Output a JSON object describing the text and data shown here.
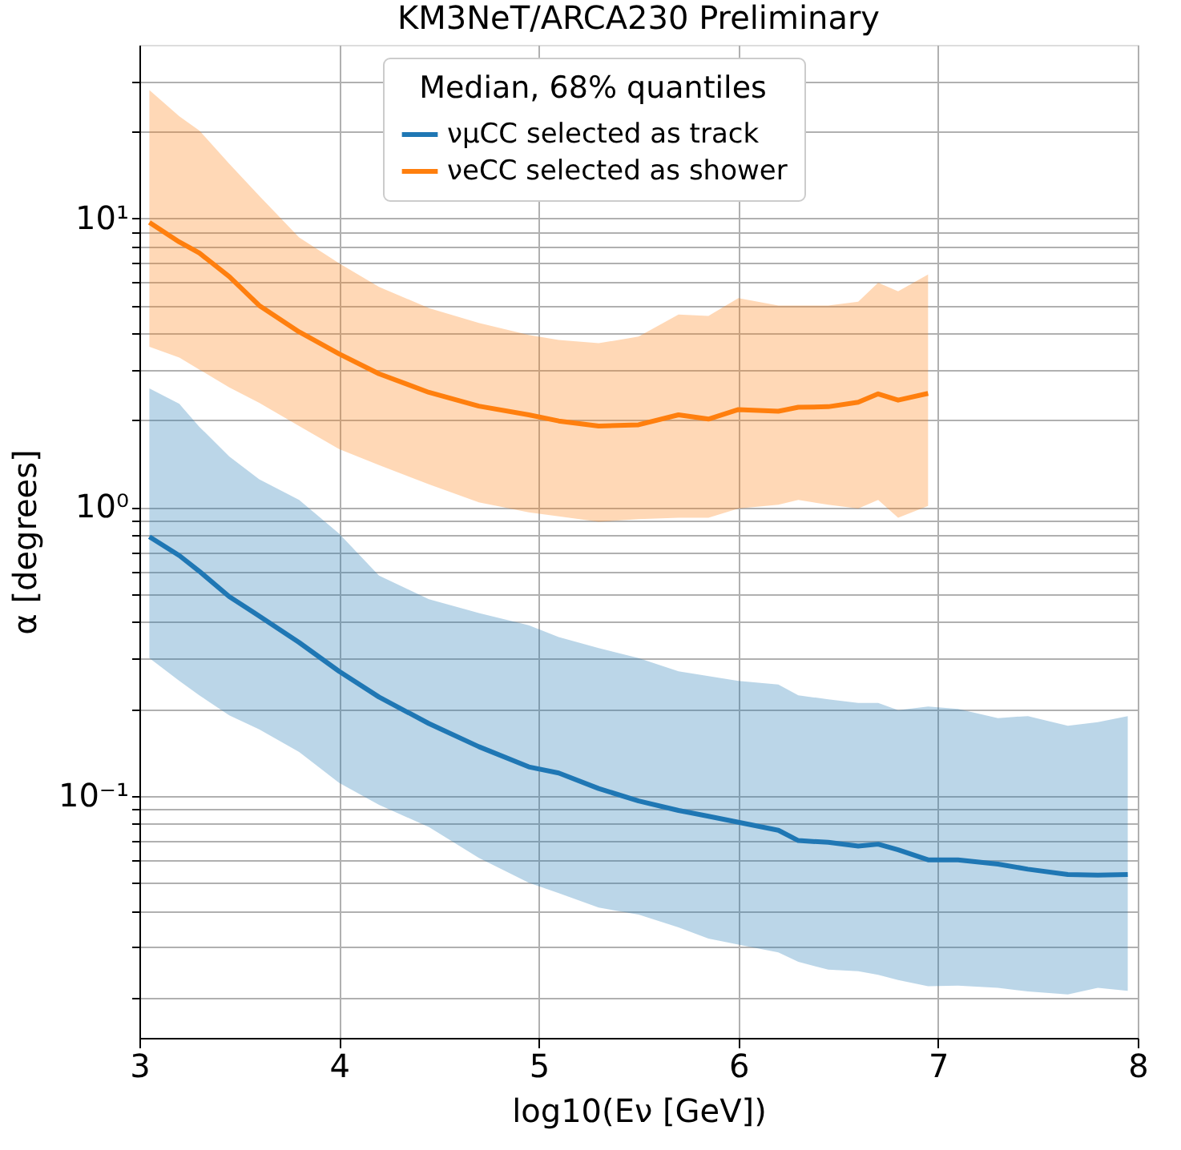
{
  "chart_data": {
    "type": "line",
    "title": "KM3NeT/ARCA230 Preliminary",
    "xlabel": "log10(Eν [GeV])",
    "ylabel": "α [degrees]",
    "legend_title": "Median, 68% quantiles",
    "series": [
      {
        "name": "νμCC selected as track",
        "color": "#1f77b4",
        "x": [
          3.05,
          3.2,
          3.3,
          3.45,
          3.6,
          3.8,
          4.0,
          4.2,
          4.45,
          4.7,
          4.95,
          5.1,
          5.3,
          5.5,
          5.7,
          5.85,
          6.0,
          6.2,
          6.3,
          6.45,
          6.6,
          6.7,
          6.8,
          6.95,
          7.1,
          7.3,
          7.45,
          7.65,
          7.8,
          7.95
        ],
        "values": [
          0.79,
          0.68,
          0.6,
          0.49,
          0.42,
          0.34,
          0.27,
          0.22,
          0.178,
          0.148,
          0.126,
          0.12,
          0.106,
          0.096,
          0.089,
          0.085,
          0.081,
          0.076,
          0.07,
          0.069,
          0.067,
          0.068,
          0.065,
          0.06,
          0.06,
          0.058,
          0.0557,
          0.0534,
          0.0531,
          0.0534
        ],
        "upper": [
          2.58,
          2.28,
          1.9,
          1.5,
          1.25,
          1.06,
          0.81,
          0.58,
          0.48,
          0.43,
          0.39,
          0.355,
          0.325,
          0.3,
          0.27,
          0.26,
          0.25,
          0.243,
          0.223,
          0.216,
          0.21,
          0.21,
          0.198,
          0.204,
          0.2,
          0.186,
          0.189,
          0.175,
          0.18,
          0.189
        ],
        "lower": [
          0.3,
          0.25,
          0.223,
          0.19,
          0.17,
          0.142,
          0.111,
          0.093,
          0.078,
          0.061,
          0.05,
          0.046,
          0.041,
          0.0388,
          0.035,
          0.032,
          0.0305,
          0.0287,
          0.0266,
          0.025,
          0.0247,
          0.024,
          0.023,
          0.0219,
          0.022,
          0.0216,
          0.021,
          0.0205,
          0.0216,
          0.0211
        ]
      },
      {
        "name": "νeCC selected as shower",
        "color": "#ff7f0e",
        "x": [
          3.05,
          3.2,
          3.3,
          3.45,
          3.6,
          3.8,
          4.0,
          4.2,
          4.45,
          4.7,
          4.95,
          5.1,
          5.3,
          5.5,
          5.7,
          5.85,
          6.0,
          6.2,
          6.3,
          6.45,
          6.6,
          6.7,
          6.8,
          6.95
        ],
        "values": [
          9.7,
          8.3,
          7.6,
          6.3,
          5.0,
          4.05,
          3.4,
          2.9,
          2.5,
          2.24,
          2.09,
          1.99,
          1.91,
          1.93,
          2.09,
          2.02,
          2.18,
          2.15,
          2.22,
          2.23,
          2.31,
          2.47,
          2.35,
          2.48
        ],
        "upper": [
          27.9,
          22.6,
          20.2,
          15.5,
          12,
          8.6,
          7.0,
          5.8,
          4.9,
          4.35,
          3.95,
          3.8,
          3.7,
          3.9,
          4.65,
          4.6,
          5.3,
          5.0,
          5.0,
          5.0,
          5.15,
          6.0,
          5.6,
          6.4
        ],
        "lower": [
          3.6,
          3.3,
          3.0,
          2.6,
          2.3,
          1.91,
          1.59,
          1.4,
          1.2,
          1.04,
          0.96,
          0.93,
          0.89,
          0.91,
          0.92,
          0.92,
          0.99,
          1.02,
          1.06,
          1.02,
          0.99,
          1.06,
          0.92,
          1.01
        ]
      }
    ],
    "xlim": [
      3,
      8
    ],
    "xticks": [
      3,
      4,
      5,
      6,
      7,
      8
    ],
    "ylim": [
      0.0145,
      40
    ],
    "log": true,
    "yticks": [
      {
        "value": 0.02,
        "label": null
      },
      {
        "value": 0.03,
        "label": null
      },
      {
        "value": 0.04,
        "label": null
      },
      {
        "value": 0.05,
        "label": null
      },
      {
        "value": 0.06,
        "label": null
      },
      {
        "value": 0.07,
        "label": null
      },
      {
        "value": 0.08,
        "label": null
      },
      {
        "value": 0.09,
        "label": null
      },
      {
        "value": 0.1,
        "label": "10⁻¹"
      },
      {
        "value": 0.2,
        "label": null
      },
      {
        "value": 0.3,
        "label": null
      },
      {
        "value": 0.4,
        "label": null
      },
      {
        "value": 0.5,
        "label": null
      },
      {
        "value": 0.6,
        "label": null
      },
      {
        "value": 0.7,
        "label": null
      },
      {
        "value": 0.8,
        "label": null
      },
      {
        "value": 0.9,
        "label": null
      },
      {
        "value": 1,
        "label": "10⁰"
      },
      {
        "value": 2,
        "label": null
      },
      {
        "value": 3,
        "label": null
      },
      {
        "value": 4,
        "label": null
      },
      {
        "value": 5,
        "label": null
      },
      {
        "value": 6,
        "label": null
      },
      {
        "value": 7,
        "label": null
      },
      {
        "value": 8,
        "label": null
      },
      {
        "value": 9,
        "label": null
      },
      {
        "value": 10,
        "label": "10¹"
      },
      {
        "value": 20,
        "label": null
      },
      {
        "value": 30,
        "label": null
      }
    ],
    "grid": true,
    "legend": "top",
    "line_style": "solid",
    "marker": "none"
  }
}
